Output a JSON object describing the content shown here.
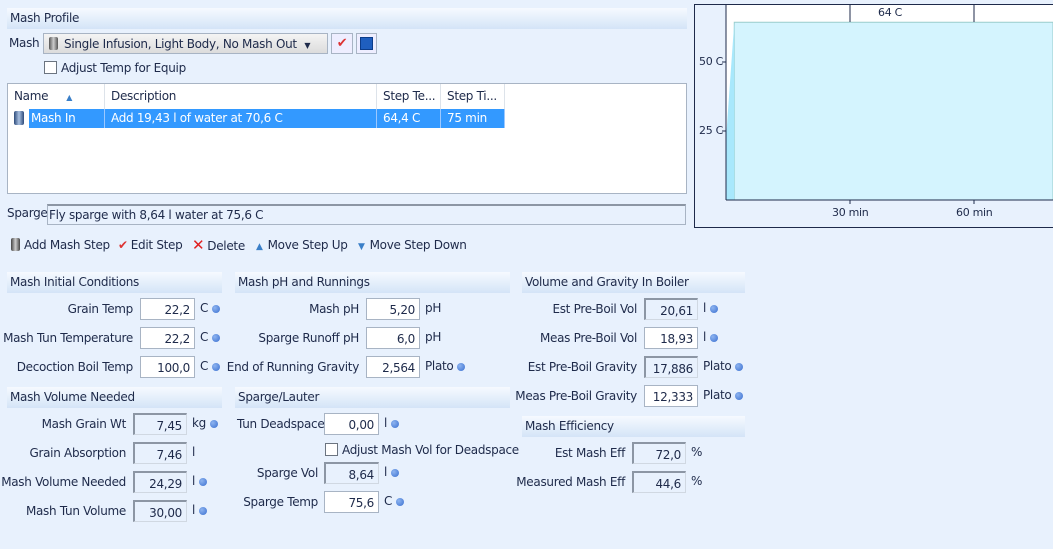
{
  "mash_profile": {
    "header": "Mash Profile",
    "mash_label": "Mash",
    "mash_selected": "Single Infusion, Light Body, No Mash Out",
    "adjust_temp_label": "Adjust Temp for Equip",
    "adjust_temp_checked": false,
    "columns": [
      "Name",
      "Description",
      "Step Te...",
      "Step Ti..."
    ],
    "rows": [
      {
        "name": "Mash In",
        "description": "Add 19,43 l of water at 70,6 C",
        "step_temp": "64,4 C",
        "step_time": "75 min"
      }
    ],
    "sparge_label": "Sparge",
    "sparge_value": "Fly sparge with 8,64 l water at 75,6 C"
  },
  "toolbar": {
    "add": "Add Mash Step",
    "edit": "Edit Step",
    "delete": "Delete",
    "up": "Move Step Up",
    "down": "Move Step Down"
  },
  "chart": {
    "y_ticks": [
      "25 C",
      "50 C"
    ],
    "x_ticks": [
      "30 min",
      "60 min"
    ],
    "step_label": "64 C",
    "fill_color": "#d4f4fe"
  },
  "sections": {
    "initial": {
      "title": "Mash Initial Conditions",
      "fields": [
        {
          "label": "Grain Temp",
          "value": "22,2",
          "unit": "C",
          "readonly": false,
          "dot": true
        },
        {
          "label": "Mash Tun Temperature",
          "value": "22,2",
          "unit": "C",
          "readonly": false,
          "dot": true
        },
        {
          "label": "Decoction Boil Temp",
          "value": "100,0",
          "unit": "C",
          "readonly": false,
          "dot": true
        }
      ]
    },
    "volume": {
      "title": "Mash Volume Needed",
      "fields": [
        {
          "label": "Mash Grain Wt",
          "value": "7,45",
          "unit": "kg",
          "readonly": true,
          "dot": true
        },
        {
          "label": "Grain Absorption",
          "value": "7,46",
          "unit": "l",
          "readonly": true,
          "dot": false
        },
        {
          "label": "Mash Volume Needed",
          "value": "24,29",
          "unit": "l",
          "readonly": true,
          "dot": true
        },
        {
          "label": "Mash Tun Volume",
          "value": "30,00",
          "unit": "l",
          "readonly": true,
          "dot": true
        }
      ]
    },
    "ph": {
      "title": "Mash pH and Runnings",
      "fields": [
        {
          "label": "Mash pH",
          "value": "5,20",
          "unit": "pH",
          "readonly": false,
          "dot": false
        },
        {
          "label": "Sparge Runoff pH",
          "value": "6,0",
          "unit": "pH",
          "readonly": false,
          "dot": false
        },
        {
          "label": "End of Running Gravity",
          "value": "2,564",
          "unit": "Plato",
          "readonly": false,
          "dot": true
        }
      ]
    },
    "sparge": {
      "title": "Sparge/Lauter",
      "adjust_label": "Adjust Mash Vol for Deadspace",
      "adjust_checked": false,
      "fields": [
        {
          "label": "Tun Deadspace",
          "value": "0,00",
          "unit": "l",
          "readonly": false,
          "dot": true
        },
        {
          "label": "Sparge Vol",
          "value": "8,64",
          "unit": "l",
          "readonly": true,
          "dot": true
        },
        {
          "label": "Sparge Temp",
          "value": "75,6",
          "unit": "C",
          "readonly": false,
          "dot": true
        }
      ]
    },
    "boiler": {
      "title": "Volume and Gravity In Boiler",
      "fields": [
        {
          "label": "Est Pre-Boil Vol",
          "value": "20,61",
          "unit": "l",
          "readonly": true,
          "dot": true
        },
        {
          "label": "Meas Pre-Boil Vol",
          "value": "18,93",
          "unit": "l",
          "readonly": false,
          "dot": true
        },
        {
          "label": "Est Pre-Boil Gravity",
          "value": "17,886",
          "unit": "Plato",
          "readonly": true,
          "dot": true
        },
        {
          "label": "Meas Pre-Boil Gravity",
          "value": "12,333",
          "unit": "Plato",
          "readonly": false,
          "dot": true
        }
      ]
    },
    "efficiency": {
      "title": "Mash Efficiency",
      "fields": [
        {
          "label": "Est Mash Eff",
          "value": "72,0",
          "unit": "%",
          "readonly": true,
          "dot": false
        },
        {
          "label": "Measured Mash Eff",
          "value": "44,6",
          "unit": "%",
          "readonly": true,
          "dot": false
        }
      ]
    }
  }
}
